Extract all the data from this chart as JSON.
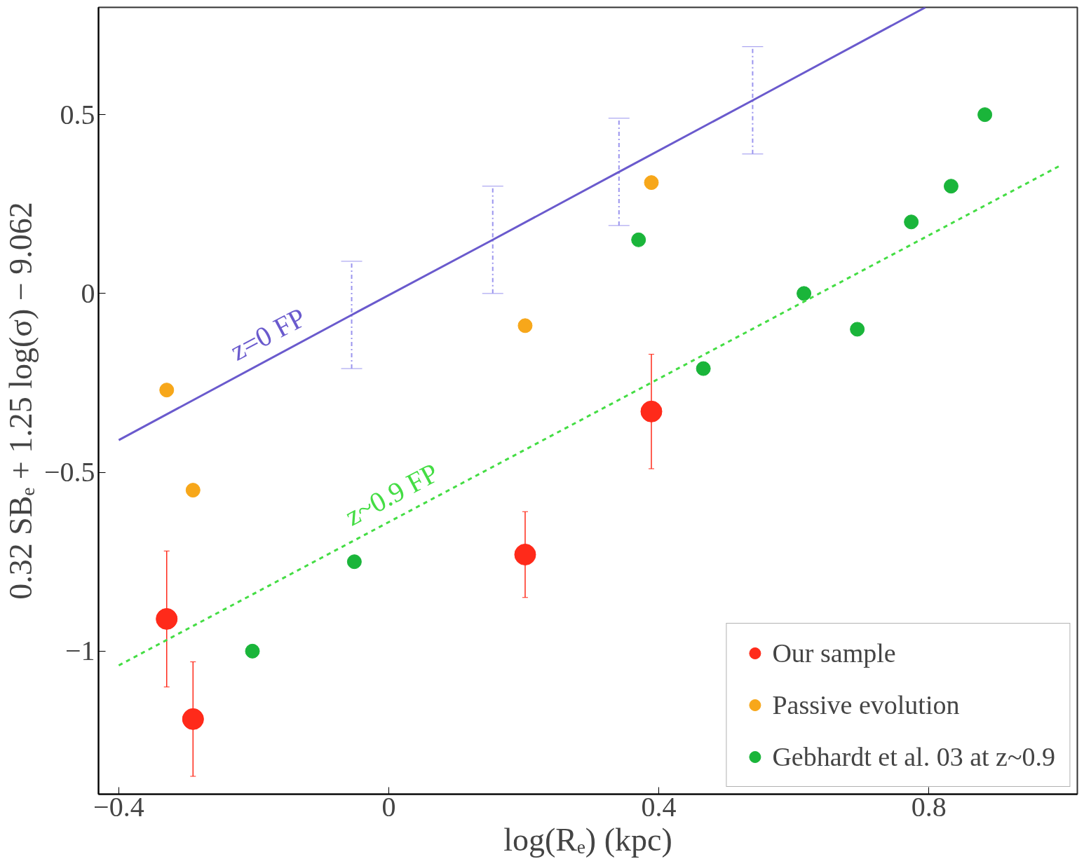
{
  "chart_data": {
    "type": "scatter",
    "xlabel": "log(Rₑ) (kpc)",
    "ylabel": "0.32 SBₑ + 1.25 log(σ) − 9.062",
    "xlim": [
      -0.43,
      1.02
    ],
    "ylim": [
      -1.4,
      0.8
    ],
    "xticks": [
      {
        "value": -0.4,
        "label": "−0.4"
      },
      0,
      0.4,
      0.8
    ],
    "yticks": [
      {
        "value": -1,
        "label": "−1"
      },
      {
        "value": -0.5,
        "label": "−0.5"
      },
      0,
      0.5
    ],
    "grid": false,
    "legend": "bottom right",
    "marker": "circle",
    "series": [
      {
        "name": "Our sample",
        "color": "#ff2a1a",
        "x": [
          -0.329,
          -0.29,
          0.202,
          0.389
        ],
        "values": [
          -0.91,
          -1.19,
          -0.73,
          -0.33
        ],
        "errors": [
          0.19,
          0.16,
          0.12,
          0.16
        ],
        "xerrors": [
          0.015,
          0.015,
          0.015,
          0.015
        ]
      },
      {
        "name": "Passive evolution",
        "color": "#f7a71a",
        "x": [
          -0.329,
          -0.29,
          0.202,
          0.389
        ],
        "values": [
          -0.27,
          -0.55,
          -0.09,
          0.31
        ]
      },
      {
        "name": "Gebhardt et al. 03 at z~0.9",
        "color": "#1ab53a",
        "x": [
          -0.202,
          -0.051,
          0.37,
          0.466,
          0.615,
          0.694,
          0.774,
          0.833,
          0.883
        ],
        "values": [
          -1.0,
          -0.75,
          0.15,
          -0.21,
          0.0,
          -0.1,
          0.2,
          0.3,
          0.5
        ]
      },
      {
        "type": "line",
        "marker": "none",
        "color": "#6a5acd",
        "line_style": "solid",
        "x": [
          -0.4,
          -0.055,
          0.154,
          0.341,
          0.539,
          0.795
        ],
        "values": [
          -0.41,
          -0.06,
          0.15,
          0.34,
          0.54,
          0.8
        ],
        "errors": [
          null,
          0.15,
          0.15,
          0.15,
          0.15,
          null
        ]
      },
      {
        "type": "line",
        "marker": "none",
        "color": "#44dd44",
        "line_style": "dashed",
        "x": [
          -0.4,
          0.997
        ],
        "values": [
          -1.04,
          0.36
        ]
      }
    ],
    "annotations": [
      "z=0 FP",
      "z~0.9 FP"
    ]
  }
}
